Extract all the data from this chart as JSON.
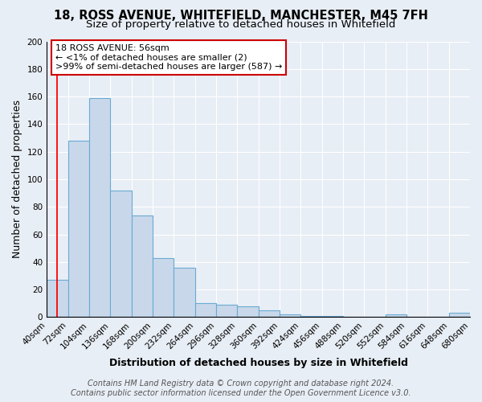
{
  "title_line1": "18, ROSS AVENUE, WHITEFIELD, MANCHESTER, M45 7FH",
  "title_line2": "Size of property relative to detached houses in Whitefield",
  "xlabel": "Distribution of detached houses by size in Whitefield",
  "ylabel": "Number of detached properties",
  "bin_edges": [
    40,
    72,
    104,
    136,
    168,
    200,
    232,
    264,
    296,
    328,
    360,
    392,
    424,
    456,
    488,
    520,
    552,
    584,
    616,
    648,
    680
  ],
  "bar_heights": [
    27,
    128,
    159,
    92,
    74,
    43,
    36,
    10,
    9,
    8,
    5,
    2,
    1,
    1,
    0,
    0,
    2,
    0,
    0,
    3
  ],
  "bar_color": "#c8d8ea",
  "bar_edgecolor": "#6aaad4",
  "bar_linewidth": 0.8,
  "ylim": [
    0,
    200
  ],
  "yticks": [
    0,
    20,
    40,
    60,
    80,
    100,
    120,
    140,
    160,
    180,
    200
  ],
  "xtick_labels": [
    "40sqm",
    "72sqm",
    "104sqm",
    "136sqm",
    "168sqm",
    "200sqm",
    "232sqm",
    "264sqm",
    "296sqm",
    "328sqm",
    "360sqm",
    "392sqm",
    "424sqm",
    "456sqm",
    "488sqm",
    "520sqm",
    "552sqm",
    "584sqm",
    "616sqm",
    "648sqm",
    "680sqm"
  ],
  "red_line_x": 56,
  "annotation_title": "18 ROSS AVENUE: 56sqm",
  "annotation_line2": "← <1% of detached houses are smaller (2)",
  "annotation_line3": ">99% of semi-detached houses are larger (587) →",
  "annotation_box_color": "#ffffff",
  "annotation_box_edgecolor": "#cc0000",
  "footer_line1": "Contains HM Land Registry data © Crown copyright and database right 2024.",
  "footer_line2": "Contains public sector information licensed under the Open Government Licence v3.0.",
  "bg_color": "#e8eef5",
  "plot_bg_color": "#e8eef5",
  "grid_color": "#ffffff",
  "title_fontsize": 10.5,
  "subtitle_fontsize": 9.5,
  "axis_label_fontsize": 9,
  "tick_fontsize": 7.5,
  "annotation_fontsize": 8,
  "footer_fontsize": 7
}
